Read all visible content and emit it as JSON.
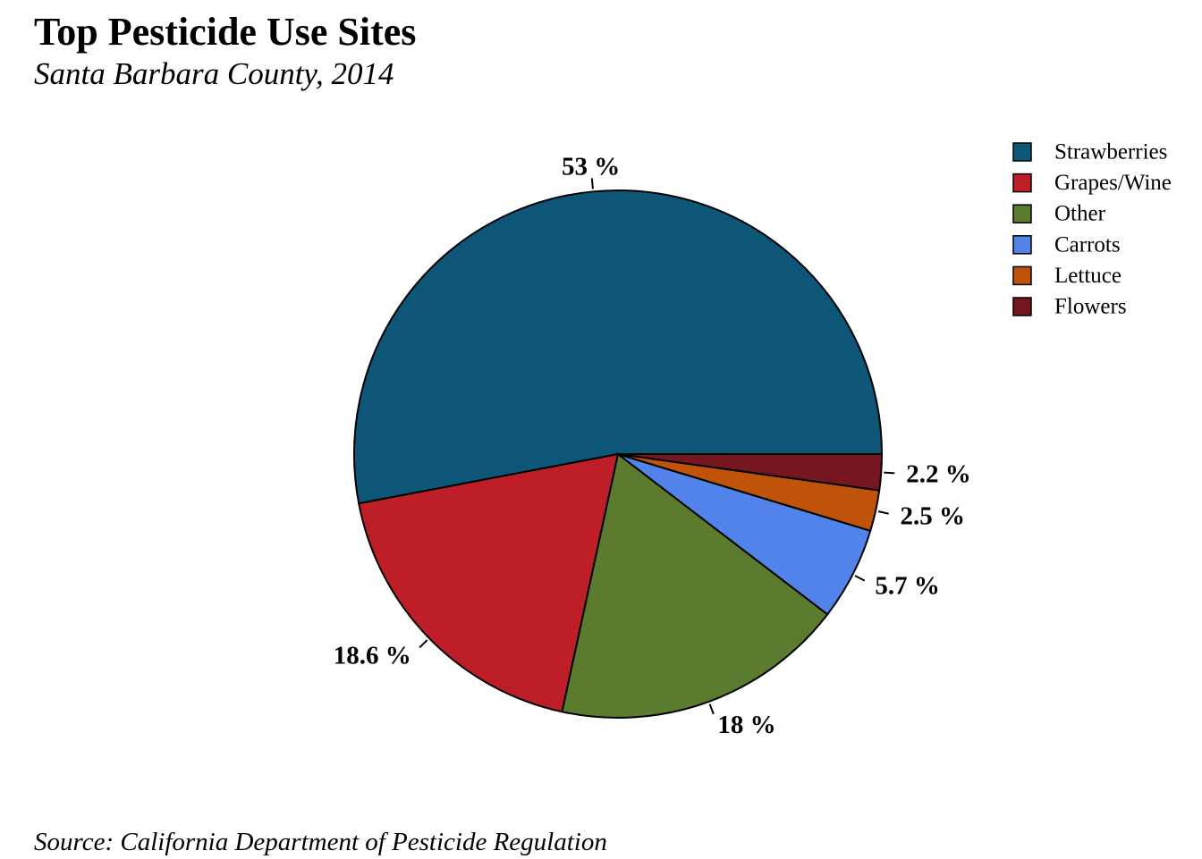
{
  "title": "Top Pesticide Use Sites",
  "subtitle": "Santa Barbara County, 2014",
  "source": "Source: California Department of Pesticide Regulation",
  "chart_data": {
    "type": "pie",
    "title": "Top Pesticide Use Sites",
    "subtitle": "Santa Barbara County, 2014",
    "categories": [
      "Strawberries",
      "Grapes/Wine",
      "Other",
      "Carrots",
      "Lettuce",
      "Flowers"
    ],
    "values": [
      53,
      18.6,
      18,
      5.7,
      2.5,
      2.2
    ],
    "labels": [
      "53 %",
      "18.6 %",
      "18 %",
      "5.7 %",
      "2.5 %",
      "2.2 %"
    ],
    "colors": [
      "#0e5677",
      "#be1e28",
      "#5b7b2f",
      "#5283ea",
      "#c0530a",
      "#76171f"
    ],
    "legend_position": "top-right",
    "start": "3 o'clock, counter-clockwise"
  }
}
